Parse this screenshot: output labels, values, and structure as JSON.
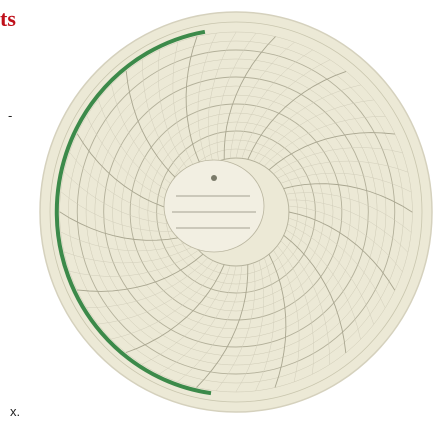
{
  "header": {
    "title": "ts"
  },
  "fragments": [
    "-",
    "x."
  ]
}
